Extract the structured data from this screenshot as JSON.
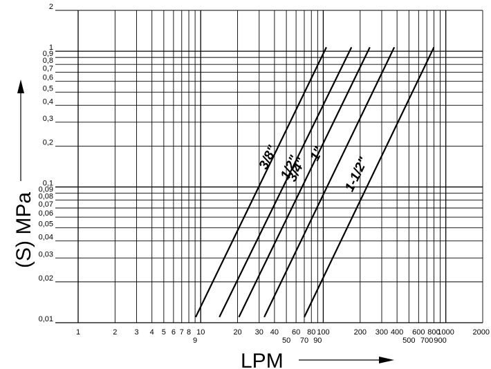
{
  "chart_data": {
    "type": "line",
    "xscale": "log",
    "yscale": "log",
    "xlim": [
      1,
      2000
    ],
    "ylim": [
      0.01,
      2
    ],
    "grid": true,
    "xlabel": "LPM",
    "ylabel": "(S) MPa",
    "x_ticks": [
      {
        "value": 1,
        "label": "1",
        "row": "top"
      },
      {
        "value": 2,
        "label": "2",
        "row": "top"
      },
      {
        "value": 3,
        "label": "3",
        "row": "top"
      },
      {
        "value": 4,
        "label": "4",
        "row": "top"
      },
      {
        "value": 5,
        "label": "5",
        "row": "top"
      },
      {
        "value": 6,
        "label": "6",
        "row": "top"
      },
      {
        "value": 7,
        "label": "7",
        "row": "top"
      },
      {
        "value": 8,
        "label": "8",
        "row": "top"
      },
      {
        "value": 9,
        "label": "9",
        "row": "bottom"
      },
      {
        "value": 10,
        "label": "10",
        "row": "top"
      },
      {
        "value": 20,
        "label": "20",
        "row": "top"
      },
      {
        "value": 30,
        "label": "30",
        "row": "top"
      },
      {
        "value": 40,
        "label": "40",
        "row": "top"
      },
      {
        "value": 50,
        "label": "50",
        "row": "bottom"
      },
      {
        "value": 60,
        "label": "60",
        "row": "top"
      },
      {
        "value": 70,
        "label": "70",
        "row": "bottom"
      },
      {
        "value": 80,
        "label": "80",
        "row": "top"
      },
      {
        "value": 90,
        "label": "90",
        "row": "bottom"
      },
      {
        "value": 100,
        "label": "100",
        "row": "top"
      },
      {
        "value": 200,
        "label": "200",
        "row": "top"
      },
      {
        "value": 300,
        "label": "300",
        "row": "top"
      },
      {
        "value": 400,
        "label": "400",
        "row": "top"
      },
      {
        "value": 500,
        "label": "500",
        "row": "bottom"
      },
      {
        "value": 600,
        "label": "600",
        "row": "top"
      },
      {
        "value": 700,
        "label": "700",
        "row": "bottom"
      },
      {
        "value": 800,
        "label": "800",
        "row": "top"
      },
      {
        "value": 900,
        "label": "900",
        "row": "bottom"
      },
      {
        "value": 1000,
        "label": "1000",
        "row": "top"
      },
      {
        "value": 2000,
        "label": "2000",
        "row": "top"
      }
    ],
    "y_ticks": [
      {
        "value": 0.01,
        "label": "0,01"
      },
      {
        "value": 0.02,
        "label": "0,02"
      },
      {
        "value": 0.03,
        "label": "0,03"
      },
      {
        "value": 0.04,
        "label": "0,04"
      },
      {
        "value": 0.05,
        "label": "0,05"
      },
      {
        "value": 0.06,
        "label": "0,06"
      },
      {
        "value": 0.07,
        "label": "0,07"
      },
      {
        "value": 0.08,
        "label": "0,08"
      },
      {
        "value": 0.09,
        "label": "0,09"
      },
      {
        "value": 0.1,
        "label": "0,1"
      },
      {
        "value": 0.2,
        "label": "0,2"
      },
      {
        "value": 0.3,
        "label": "0,3"
      },
      {
        "value": 0.4,
        "label": "0,4"
      },
      {
        "value": 0.5,
        "label": "0,5"
      },
      {
        "value": 0.6,
        "label": "0,6"
      },
      {
        "value": 0.7,
        "label": "0,7"
      },
      {
        "value": 0.8,
        "label": "0,8"
      },
      {
        "value": 0.9,
        "label": "0,9"
      },
      {
        "value": 1,
        "label": "1"
      },
      {
        "value": 2,
        "label": "2"
      }
    ],
    "series": [
      {
        "name": "3/8\"",
        "x": [
          9.1,
          106
        ],
        "y": [
          0.011,
          1.07
        ],
        "label_at": {
          "x": 38,
          "y": 0.16
        }
      },
      {
        "name": "1/2\"",
        "x": [
          14.2,
          170
        ],
        "y": [
          0.011,
          1.07
        ],
        "label_at": {
          "x": 57,
          "y": 0.135
        }
      },
      {
        "name": "3/4\"",
        "x": [
          20.5,
          240
        ],
        "y": [
          0.011,
          1.07
        ],
        "label_at": {
          "x": 65,
          "y": 0.13
        }
      },
      {
        "name": "1\"",
        "x": [
          33,
          380
        ],
        "y": [
          0.011,
          1.07
        ],
        "label_at": {
          "x": 95,
          "y": 0.17
        }
      },
      {
        "name": "1-1/2\"",
        "x": [
          70,
          800
        ],
        "y": [
          0.011,
          1.07
        ],
        "label_at": {
          "x": 200,
          "y": 0.12
        }
      }
    ]
  }
}
